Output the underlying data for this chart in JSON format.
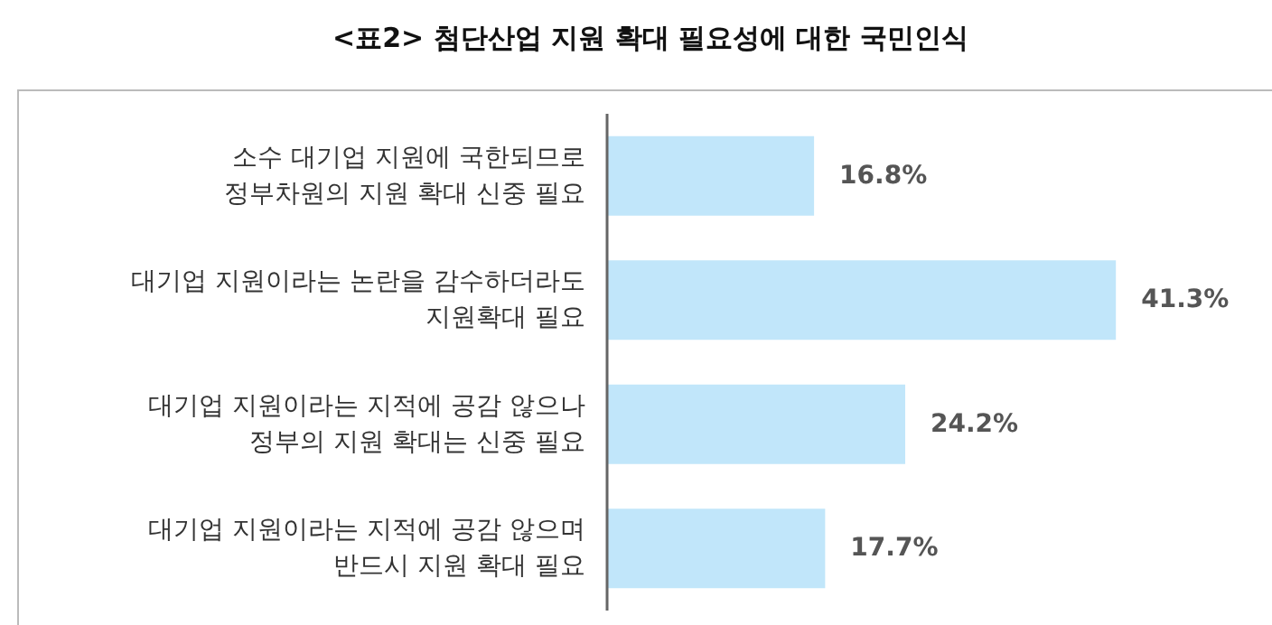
{
  "chart_data": {
    "type": "bar",
    "orientation": "horizontal",
    "title": "<표2> 첨단산업 지원 확대 필요성에 대한 국민인식",
    "categories": [
      "소수 대기업 지원에 국한되므로\n정부차원의 지원 확대 신중 필요",
      "대기업 지원이라는 논란을 감수하더라도\n지원확대 필요",
      "대기업 지원이라는 지적에 공감 않으나\n정부의 지원 확대는 신중 필요",
      "대기업 지원이라는 지적에 공감 않으며\n반드시 지원 확대 필요"
    ],
    "values": [
      16.8,
      41.3,
      24.2,
      17.7
    ],
    "value_labels": [
      "16.8%",
      "41.3%",
      "24.2%",
      "17.7%"
    ],
    "color": "#c1e6fa"
  }
}
